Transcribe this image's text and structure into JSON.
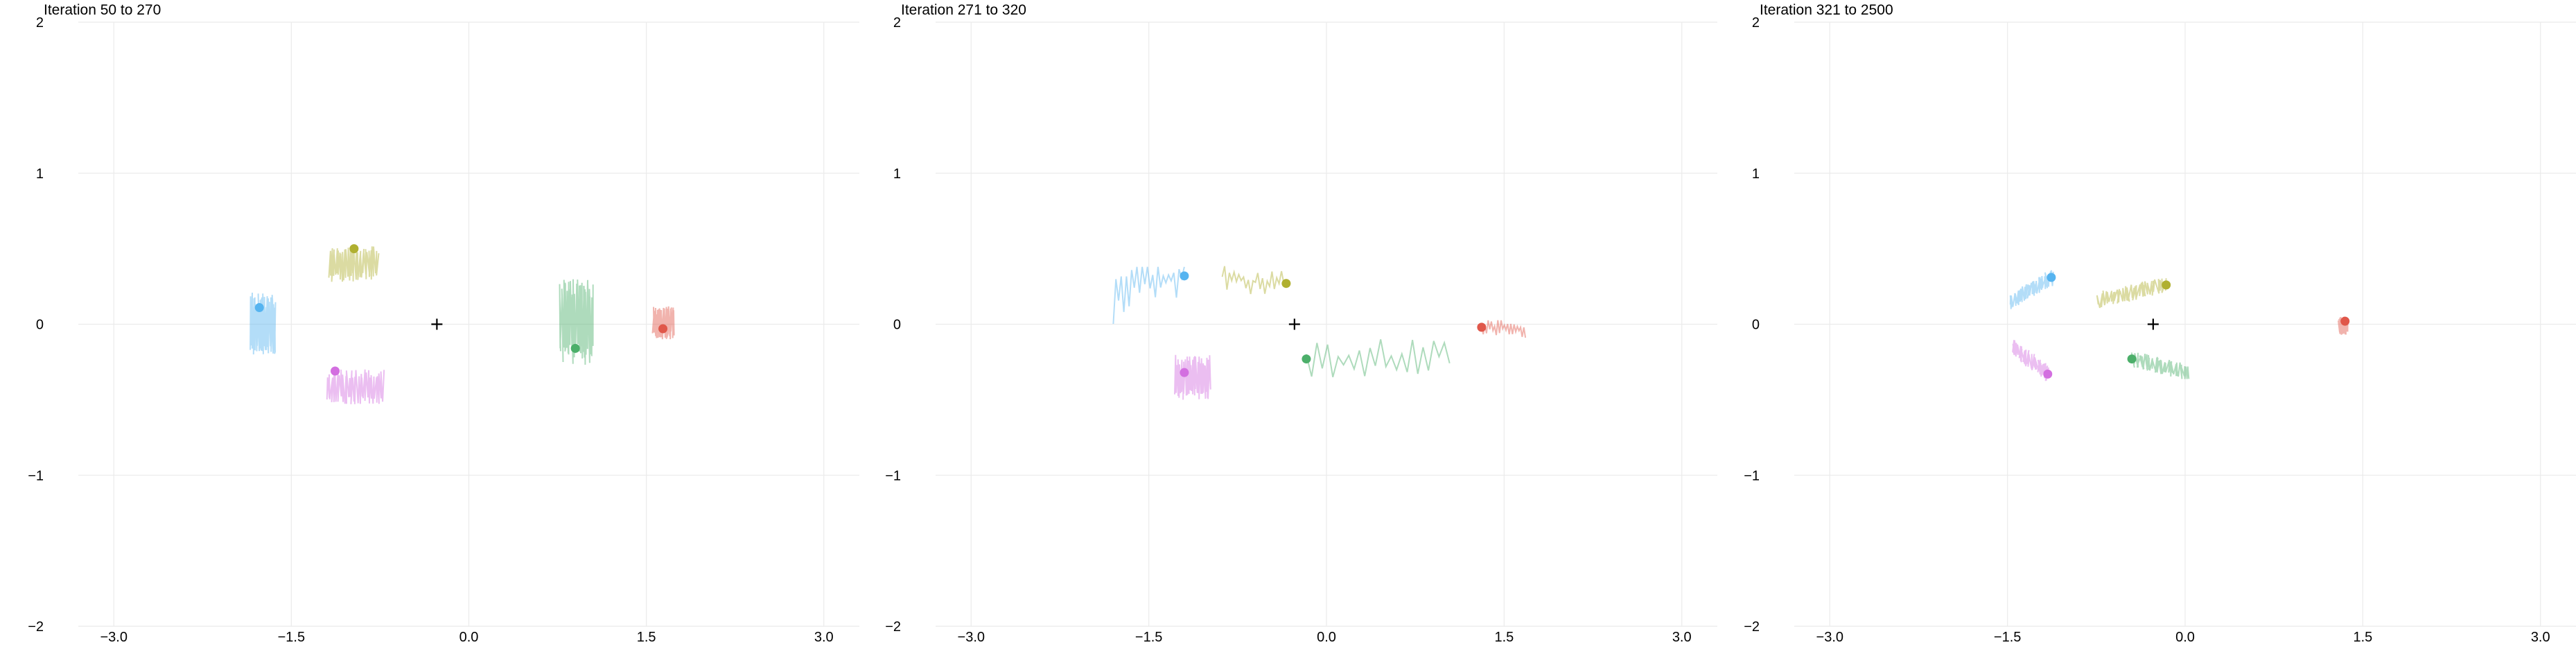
{
  "chart_data": [
    {
      "type": "line",
      "title": "Iteration 50 to 270",
      "xlim": [
        -3.3,
        3.3
      ],
      "ylim": [
        -2,
        2
      ],
      "xticks": [
        "−3.0",
        "−1.5",
        "0.0",
        "1.5",
        "3.0"
      ],
      "xtick_values": [
        -3.0,
        -1.5,
        0.0,
        1.5,
        3.0
      ],
      "yticks": [
        "2",
        "1",
        "0",
        "−1",
        "−2"
      ],
      "ytick_values": [
        2,
        1,
        0,
        -1,
        -2
      ],
      "grid": true,
      "center": [
        -0.27,
        0.0
      ],
      "series": [
        {
          "color": "#56b4f0",
          "point": [
            -1.77,
            0.11
          ],
          "trail": {
            "x": [
              -1.84,
              -1.63
            ],
            "y": [
              -0.21,
              0.21
            ],
            "style": "vertical"
          }
        },
        {
          "color": "#b0b030",
          "point": [
            -0.97,
            0.5
          ],
          "trail": {
            "x": [
              -1.18,
              -0.77
            ],
            "y": [
              0.28,
              0.52
            ],
            "style": "vertical"
          }
        },
        {
          "color": "#d36fe0",
          "point": [
            -1.13,
            -0.31
          ],
          "trail": {
            "x": [
              -1.2,
              -0.72
            ],
            "y": [
              -0.53,
              -0.3
            ],
            "style": "vertical"
          }
        },
        {
          "color": "#4caf6a",
          "point": [
            0.9,
            -0.16
          ],
          "trail": {
            "x": [
              0.77,
              1.05
            ],
            "y": [
              -0.27,
              0.3
            ],
            "style": "vertical"
          }
        },
        {
          "color": "#e0574a",
          "point": [
            1.64,
            -0.03
          ],
          "trail": {
            "x": [
              1.56,
              1.73
            ],
            "y": [
              -0.1,
              0.12
            ],
            "style": "vertical"
          }
        }
      ]
    },
    {
      "type": "line",
      "title": "Iteration 271 to 320",
      "xlim": [
        -3.3,
        3.3
      ],
      "ylim": [
        -2,
        2
      ],
      "xticks": [
        "−3.0",
        "−1.5",
        "0.0",
        "1.5",
        "3.0"
      ],
      "xtick_values": [
        -3.0,
        -1.5,
        0.0,
        1.5,
        3.0
      ],
      "yticks": [
        "2",
        "1",
        "0",
        "−1",
        "−2"
      ],
      "ytick_values": [
        2,
        1,
        0,
        -1,
        -2
      ],
      "grid": true,
      "center": [
        -0.27,
        0.0
      ],
      "series": [
        {
          "color": "#56b4f0",
          "point": [
            -1.2,
            0.32
          ],
          "trail": {
            "x": [
              -1.8,
              -1.12
            ],
            "y": [
              -0.1,
              0.38
            ],
            "style": "path"
          }
        },
        {
          "color": "#b0b030",
          "point": [
            -0.34,
            0.27
          ],
          "trail": {
            "x": [
              -0.88,
              0.06
            ],
            "y": [
              0.2,
              0.48
            ],
            "style": "path"
          }
        },
        {
          "color": "#d36fe0",
          "point": [
            -1.2,
            -0.32
          ],
          "trail": {
            "x": [
              -1.28,
              -0.98
            ],
            "y": [
              -0.5,
              -0.2
            ],
            "style": "vertical"
          }
        },
        {
          "color": "#4caf6a",
          "point": [
            -0.17,
            -0.23
          ],
          "trail": {
            "x": [
              -0.57,
              1.04
            ],
            "y": [
              -0.35,
              0.02
            ],
            "style": "path"
          }
        },
        {
          "color": "#e0574a",
          "point": [
            1.31,
            -0.02
          ],
          "trail": {
            "x": [
              1.31,
              1.68
            ],
            "y": [
              -0.12,
              0.03
            ],
            "style": "path"
          }
        }
      ]
    },
    {
      "type": "line",
      "title": "Iteration 321 to 2500",
      "xlim": [
        -3.3,
        3.3
      ],
      "ylim": [
        -2,
        2
      ],
      "xticks": [
        "−3.0",
        "−1.5",
        "0.0",
        "1.5",
        "3.0"
      ],
      "xtick_values": [
        -3.0,
        -1.5,
        0.0,
        1.5,
        3.0
      ],
      "yticks": [
        "2",
        "1",
        "0",
        "−1",
        "−2"
      ],
      "ytick_values": [
        2,
        1,
        0,
        -1,
        -2
      ],
      "grid": true,
      "center": [
        -0.27,
        0.0
      ],
      "series": [
        {
          "color": "#56b4f0",
          "point": [
            -1.13,
            0.31
          ],
          "trail": {
            "x": [
              -1.48,
              -1.13
            ],
            "y": [
              0.15,
              0.38
            ],
            "style": "band"
          }
        },
        {
          "color": "#b0b030",
          "point": [
            -0.16,
            0.26
          ],
          "trail": {
            "x": [
              -0.74,
              0.04
            ],
            "y": [
              0.16,
              0.34
            ],
            "style": "band"
          }
        },
        {
          "color": "#d36fe0",
          "point": [
            -1.16,
            -0.33
          ],
          "trail": {
            "x": [
              -1.46,
              -1.14
            ],
            "y": [
              -0.36,
              -0.15
            ],
            "style": "band"
          }
        },
        {
          "color": "#4caf6a",
          "point": [
            -0.45,
            -0.23
          ],
          "trail": {
            "x": [
              -0.62,
              0.03
            ],
            "y": [
              -0.32,
              -0.16
            ],
            "style": "band"
          }
        },
        {
          "color": "#e0574a",
          "point": [
            1.35,
            0.02
          ],
          "trail": {
            "x": [
              1.3,
              1.37
            ],
            "y": [
              -0.07,
              0.05
            ],
            "style": "vertical"
          }
        }
      ]
    }
  ]
}
